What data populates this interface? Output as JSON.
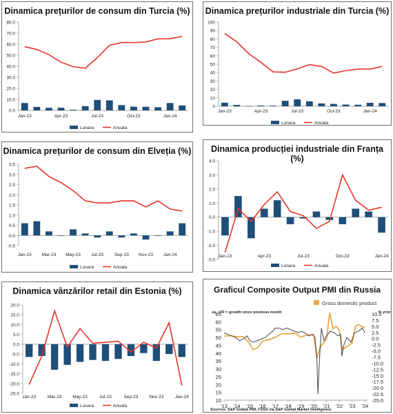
{
  "colors": {
    "bar": "#1f4e79",
    "line": "#e8332a",
    "pmi": "#444444",
    "gdp": "#e8a94b"
  },
  "chart_data": [
    {
      "id": "c1",
      "type": "bar+line",
      "title": "Dinamica prețurilor de consum din Turcia (%)",
      "ylim": [
        0,
        80
      ],
      "yticks": [
        "0.0",
        "10.0",
        "20.0",
        "30.0",
        "40.0",
        "50.0",
        "60.0",
        "70.0",
        "80.0"
      ],
      "xticks": [
        "Jan-23",
        "Apr-23",
        "Jul-23",
        "Oct-23",
        "Jan-24"
      ],
      "xtick_index": [
        0,
        3,
        6,
        9,
        12
      ],
      "series": [
        {
          "name": "Lunara",
          "kind": "bar",
          "values": [
            6.7,
            3.2,
            2.3,
            2.4,
            0.6,
            3.9,
            9.5,
            9.1,
            4.8,
            3.4,
            3.3,
            2.9,
            6.7,
            4.5
          ]
        },
        {
          "name": "Anuala",
          "kind": "line",
          "values": [
            57.7,
            55.2,
            50.5,
            43.7,
            39.6,
            38.2,
            47.8,
            58.9,
            61.5,
            61.4,
            62.0,
            64.8,
            64.9,
            67.1
          ]
        }
      ]
    },
    {
      "id": "c2",
      "type": "bar+line",
      "title": "Dinamica prețurilor industriale din Turcia (%)",
      "ylim": [
        0,
        100
      ],
      "yticks": [
        "0",
        "10",
        "20",
        "30",
        "40",
        "50",
        "60",
        "70",
        "80",
        "90",
        "100"
      ],
      "xticks": [
        "Jan-23",
        "Apr-23",
        "Jul-23",
        "Oct-23",
        "Jan-24"
      ],
      "xtick_index": [
        0,
        3,
        6,
        9,
        12
      ],
      "series": [
        {
          "name": "Lunara",
          "kind": "bar",
          "values": [
            4.2,
            1.6,
            0.3,
            0.8,
            0.7,
            6.5,
            8.2,
            5.9,
            3.4,
            2.8,
            2.0,
            1.8,
            4.1,
            3.8
          ]
        },
        {
          "name": "Anuala",
          "kind": "line",
          "values": [
            86.5,
            76.6,
            62.4,
            52.1,
            40.8,
            40.4,
            44.5,
            49.4,
            47.4,
            39.4,
            42.3,
            44.2,
            44.2,
            47.3
          ]
        }
      ]
    },
    {
      "id": "c3",
      "type": "bar+line",
      "title": "Dinamica prețurilor de consum din Elveția (%)",
      "ylim": [
        -0.5,
        3.5
      ],
      "yticks": [
        "-0.5",
        "0.0",
        "0.5",
        "1.0",
        "1.5",
        "2.0",
        "2.5",
        "3.0",
        "3.5"
      ],
      "xticks": [
        "Jan-23",
        "Mar-23",
        "May-23",
        "Jul-23",
        "Sep-23",
        "Nov-23",
        "Jan-24"
      ],
      "xtick_index": [
        0,
        2,
        4,
        6,
        8,
        10,
        12
      ],
      "series": [
        {
          "name": "Lunara",
          "kind": "bar",
          "values": [
            0.6,
            0.7,
            0.2,
            0.0,
            0.3,
            0.1,
            -0.1,
            0.2,
            -0.1,
            0.1,
            -0.2,
            0.0,
            0.2,
            0.6
          ]
        },
        {
          "name": "Anuala",
          "kind": "line",
          "values": [
            3.3,
            3.4,
            2.9,
            2.6,
            2.2,
            1.7,
            1.6,
            1.6,
            1.7,
            1.7,
            1.4,
            1.7,
            1.3,
            1.2
          ]
        }
      ]
    },
    {
      "id": "c4",
      "type": "bar+line",
      "title": "Dinamica producției industriale din Franța (%)",
      "ylim": [
        -3,
        4
      ],
      "yticks": [
        "-3.0",
        "-2.0",
        "-1.0",
        "0.0",
        "1.0",
        "2.0",
        "3.0",
        "4.0"
      ],
      "xticks": [
        "Jan-23",
        "Apr-23",
        "Jul-23",
        "Oct-23",
        "Jan-24"
      ],
      "xtick_index": [
        0,
        3,
        6,
        9,
        12
      ],
      "series": [
        {
          "name": "Lunara",
          "kind": "bar",
          "values": [
            -1.3,
            1.5,
            -1.5,
            0.6,
            1.2,
            -0.5,
            -0.1,
            0.4,
            -0.2,
            -0.5,
            0.6,
            0.4,
            -1.1
          ]
        },
        {
          "name": "Anuala",
          "kind": "line",
          "values": [
            -2.5,
            0.6,
            -0.3,
            0.9,
            1.8,
            0.4,
            0.1,
            -0.8,
            -0.3,
            3.0,
            1.2,
            0.5,
            0.7
          ]
        }
      ]
    },
    {
      "id": "c5",
      "type": "bar+line",
      "title": "Dinamica vânzărilor retail din Estonia (%)",
      "ylim": [
        -25,
        20
      ],
      "yticks": [
        "-25.0",
        "-20.0",
        "-15.0",
        "-10.0",
        "-5.0",
        "0.0",
        "5.0",
        "10.0",
        "15.0",
        "20.0"
      ],
      "xticks": [
        "Jan-23",
        "Mar-23",
        "May-23",
        "Jul-23",
        "Sep-23",
        "Nov-23",
        "Jan-24"
      ],
      "xtick_index": [
        0,
        2,
        4,
        6,
        8,
        10,
        12
      ],
      "series": [
        {
          "name": "Lunara",
          "kind": "bar",
          "values": [
            -6.5,
            -6.0,
            -13.0,
            -10.5,
            -9.0,
            -8.0,
            -8.5,
            -7.5,
            -6.0,
            -4.5,
            -8.5,
            -5.0,
            -6.5
          ]
        },
        {
          "name": "Anuala",
          "kind": "line",
          "values": [
            -20.5,
            -6.0,
            17.0,
            -1.5,
            8.0,
            0.5,
            1.0,
            1.5,
            -4.0,
            1.0,
            -2.0,
            11.0,
            -21.0
          ]
        }
      ]
    },
    {
      "id": "c6",
      "type": "line",
      "title": "Graficul Composite Output PMI din Russia",
      "legend": "Gross domestic product",
      "left_axis_label": "sa, >50 = growth since previous month",
      "right_axis_label": "% yr/yr",
      "source": "Sources: S&P Global PMI, FSSS via S&P Global Market Intelligence.",
      "ylim_left": [
        10,
        65
      ],
      "yticks_left": [
        "10",
        "15",
        "20",
        "25",
        "30",
        "35",
        "40",
        "45",
        "50",
        "55",
        "60",
        "65"
      ],
      "ylim_right": [
        -25,
        10
      ],
      "yticks_right": [
        "10.0",
        "7.5",
        "5.0",
        "2.5",
        "0.0",
        "-2.5",
        "-5.0",
        "-7.5",
        "-10.0",
        "-12.5",
        "-15.0",
        "-17.5",
        "-20.0",
        "-22.5",
        "-25.0"
      ],
      "xlim": [
        2013,
        2024.2
      ],
      "xticks": [
        "'13",
        "'14",
        "'15",
        "'16",
        "'17",
        "'18",
        "'19",
        "'20",
        "'21",
        "'22",
        "'23",
        "'24"
      ],
      "series": [
        {
          "name": "PMI",
          "x": [
            2013.0,
            2013.3,
            2013.6,
            2013.9,
            2014.2,
            2014.5,
            2014.8,
            2015.0,
            2015.3,
            2015.6,
            2015.9,
            2016.2,
            2016.5,
            2016.8,
            2017.0,
            2017.3,
            2017.6,
            2017.9,
            2018.2,
            2018.5,
            2018.8,
            2019.0,
            2019.3,
            2019.6,
            2019.9,
            2020.1,
            2020.25,
            2020.33,
            2020.45,
            2020.6,
            2020.8,
            2021.0,
            2021.3,
            2021.6,
            2021.9,
            2022.1,
            2022.2,
            2022.35,
            2022.6,
            2022.9,
            2023.2,
            2023.5,
            2023.8,
            2024.0
          ],
          "values": [
            53,
            52,
            51,
            50,
            48,
            49,
            51,
            48,
            47,
            48,
            49,
            50,
            52,
            54,
            56,
            56,
            55,
            56,
            55,
            54,
            53,
            54,
            53,
            51,
            52,
            50,
            36,
            14,
            36,
            56,
            48,
            51,
            54,
            53,
            51,
            52,
            38,
            45,
            50,
            47,
            53,
            54,
            56,
            53
          ]
        },
        {
          "name": "Gross domestic product",
          "x": [
            2013.0,
            2013.5,
            2014.0,
            2014.5,
            2015.0,
            2015.25,
            2015.5,
            2015.75,
            2016.0,
            2016.5,
            2017.0,
            2017.5,
            2018.0,
            2018.5,
            2019.0,
            2019.5,
            2020.0,
            2020.25,
            2020.5,
            2020.75,
            2021.0,
            2021.25,
            2021.5,
            2021.75,
            2022.0,
            2022.25,
            2022.5,
            2022.75,
            2023.0,
            2023.25,
            2023.5,
            2023.75,
            2024.0
          ],
          "values": [
            1.0,
            1.2,
            0.7,
            0.8,
            -2.0,
            -4.5,
            -4.0,
            -3.0,
            -1.0,
            -0.5,
            0.5,
            2.0,
            1.9,
            2.2,
            0.6,
            1.5,
            1.6,
            -7.8,
            -3.5,
            -1.8,
            -0.3,
            10.5,
            4.0,
            5.0,
            3.5,
            -4.5,
            -3.5,
            -2.7,
            -1.8,
            4.9,
            5.7,
            4.9,
            4.5
          ]
        }
      ]
    }
  ]
}
